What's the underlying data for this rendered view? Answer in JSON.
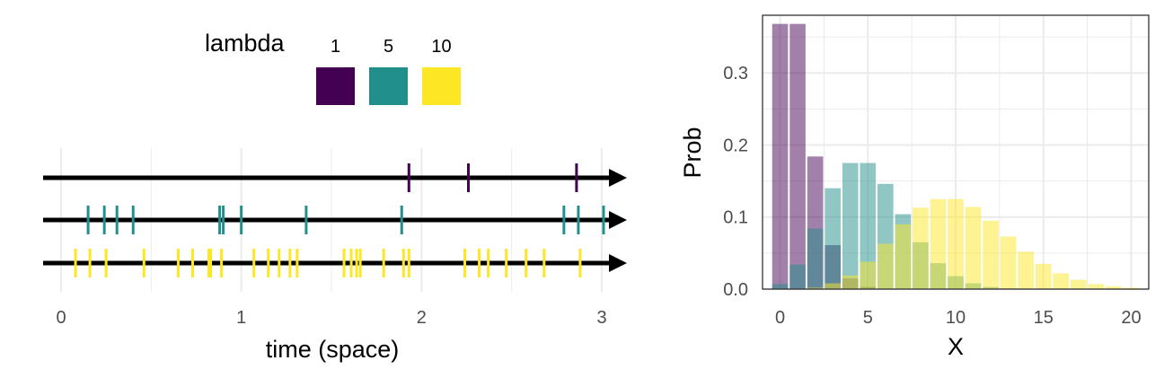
{
  "chart_data": [
    {
      "type": "scatter",
      "subtype": "event-timeline",
      "xlabel": "time (space)",
      "xlim": [
        0,
        3
      ],
      "xticks": [
        0,
        1,
        2,
        3
      ],
      "grid": true,
      "legend": {
        "title": "lambda",
        "position": "top",
        "entries": [
          {
            "label": "1",
            "color": "#440154"
          },
          {
            "label": "5",
            "color": "#21908C"
          },
          {
            "label": "10",
            "color": "#FDE725"
          }
        ]
      },
      "series": [
        {
          "name": "1",
          "color": "#440154",
          "events": [
            1.93,
            2.26,
            2.86
          ]
        },
        {
          "name": "5",
          "color": "#21908C",
          "events": [
            0.15,
            0.24,
            0.31,
            0.4,
            0.88,
            0.9,
            1.0,
            1.36,
            1.89,
            2.79,
            2.87,
            3.01
          ]
        },
        {
          "name": "10",
          "color": "#FDE725",
          "events": [
            0.08,
            0.16,
            0.25,
            0.46,
            0.65,
            0.73,
            0.82,
            0.83,
            0.89,
            1.07,
            1.15,
            1.21,
            1.27,
            1.31,
            1.57,
            1.61,
            1.64,
            1.66,
            1.79,
            1.9,
            1.93,
            2.24,
            2.32,
            2.37,
            2.47,
            2.58,
            2.68,
            2.88
          ]
        }
      ]
    },
    {
      "type": "bar",
      "subtype": "overlapping-histogram",
      "xlabel": "X",
      "ylabel": "Prob",
      "xlim": [
        -1,
        21
      ],
      "ylim": [
        0,
        0.38
      ],
      "xticks": [
        0,
        5,
        10,
        15,
        20
      ],
      "yticks": [
        "0.0",
        "0.1",
        "0.2",
        "0.3"
      ],
      "grid": true,
      "series": [
        {
          "name": "1",
          "color": "#440154",
          "opacity": 0.5,
          "x": [
            0,
            1,
            2,
            3,
            4,
            5,
            6
          ],
          "values": [
            0.368,
            0.368,
            0.184,
            0.061,
            0.015,
            0.003,
            0.0005
          ]
        },
        {
          "name": "5",
          "color": "#21908C",
          "opacity": 0.5,
          "x": [
            0,
            1,
            2,
            3,
            4,
            5,
            6,
            7,
            8,
            9,
            10,
            11,
            12,
            13
          ],
          "values": [
            0.007,
            0.034,
            0.084,
            0.14,
            0.175,
            0.175,
            0.146,
            0.104,
            0.065,
            0.036,
            0.018,
            0.008,
            0.003,
            0.001
          ]
        },
        {
          "name": "10",
          "color": "#FDE725",
          "opacity": 0.5,
          "x": [
            0,
            1,
            2,
            3,
            4,
            5,
            6,
            7,
            8,
            9,
            10,
            11,
            12,
            13,
            14,
            15,
            16,
            17,
            18,
            19,
            20
          ],
          "values": [
            5e-05,
            0.0005,
            0.002,
            0.008,
            0.019,
            0.038,
            0.063,
            0.09,
            0.113,
            0.125,
            0.125,
            0.114,
            0.095,
            0.073,
            0.052,
            0.035,
            0.022,
            0.013,
            0.007,
            0.004,
            0.002
          ]
        }
      ]
    }
  ]
}
